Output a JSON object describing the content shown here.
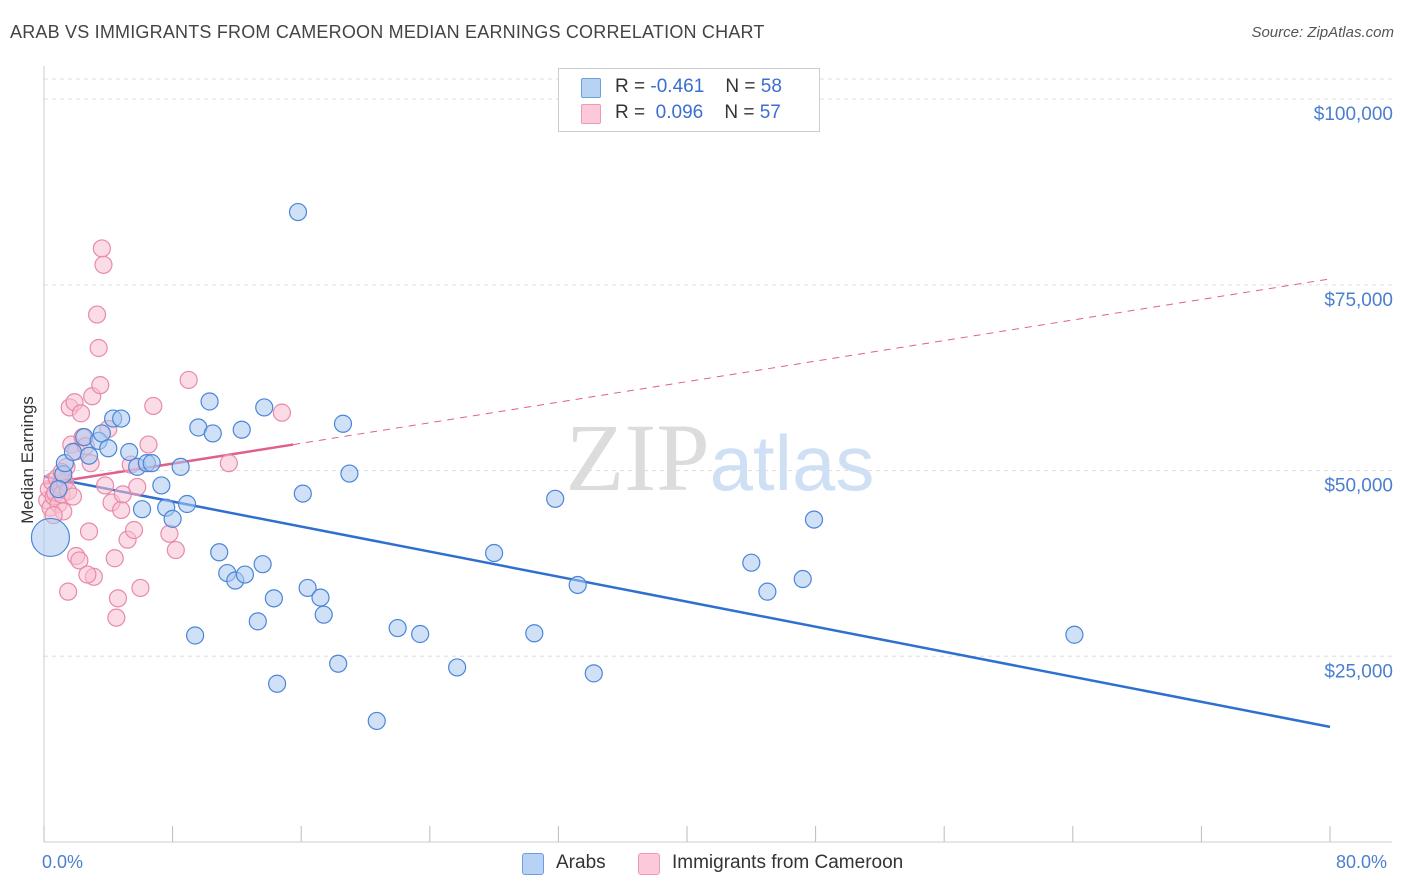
{
  "title": "ARAB VS IMMIGRANTS FROM CAMEROON MEDIAN EARNINGS CORRELATION CHART",
  "source": "Source: ZipAtlas.com",
  "watermark": "ZIPatlas",
  "legend": {
    "rows": [
      {
        "r_label": "R =",
        "r_value": "-0.461",
        "n_label": "N =",
        "n_value": "58"
      },
      {
        "r_label": "R =",
        "r_value": "0.096",
        "n_label": "N =",
        "n_value": "57"
      }
    ]
  },
  "bottom_legend": {
    "arabs": "Arabs",
    "cameroon": "Immigrants from Cameroon"
  },
  "colors": {
    "arabs_fill": "#a9c8f0",
    "arabs_stroke": "#4a86d8",
    "arabs_line": "#2f6fd0",
    "cameroon_fill": "#f8bfd2",
    "cameroon_stroke": "#e88aa8",
    "cameroon_line": "#e0608a",
    "grid": "#dddddd",
    "axis_text": "#4a7fd0"
  },
  "chart_data": {
    "type": "scatter",
    "title": "ARAB VS IMMIGRANTS FROM CAMEROON MEDIAN EARNINGS CORRELATION CHART",
    "xlabel": "",
    "ylabel": "Median Earnings",
    "xlim": [
      0,
      80
    ],
    "ylim": [
      0,
      105000
    ],
    "x_tick_labels": [
      "0.0%",
      "80.0%"
    ],
    "y_ticks": [
      25000,
      50000,
      75000,
      100000
    ],
    "y_tick_labels": [
      "$25,000",
      "$50,000",
      "$75,000",
      "$100,000"
    ],
    "grid": true,
    "legend_position": "top-center",
    "series": [
      {
        "name": "Arabs",
        "r": -0.461,
        "n": 58,
        "trend": {
          "x": [
            0,
            80
          ],
          "y": [
            49200,
            15500
          ],
          "style": "solid"
        },
        "points": [
          {
            "x": 0.4,
            "y": 41000,
            "big": true
          },
          {
            "x": 1.2,
            "y": 49500
          },
          {
            "x": 1.3,
            "y": 51000
          },
          {
            "x": 1.8,
            "y": 52500
          },
          {
            "x": 2.5,
            "y": 54500
          },
          {
            "x": 2.8,
            "y": 52000
          },
          {
            "x": 3.4,
            "y": 54000
          },
          {
            "x": 3.6,
            "y": 55000
          },
          {
            "x": 4.0,
            "y": 53000
          },
          {
            "x": 4.3,
            "y": 57000
          },
          {
            "x": 4.8,
            "y": 57000
          },
          {
            "x": 5.3,
            "y": 52500
          },
          {
            "x": 5.8,
            "y": 50500
          },
          {
            "x": 6.1,
            "y": 44800
          },
          {
            "x": 6.4,
            "y": 51000
          },
          {
            "x": 6.7,
            "y": 51000
          },
          {
            "x": 7.3,
            "y": 48000
          },
          {
            "x": 7.6,
            "y": 45000
          },
          {
            "x": 8.0,
            "y": 43500
          },
          {
            "x": 8.5,
            "y": 50500
          },
          {
            "x": 8.9,
            "y": 45500
          },
          {
            "x": 9.4,
            "y": 27800
          },
          {
            "x": 9.6,
            "y": 55800
          },
          {
            "x": 10.3,
            "y": 59300
          },
          {
            "x": 10.5,
            "y": 55000
          },
          {
            "x": 10.9,
            "y": 39000
          },
          {
            "x": 11.4,
            "y": 36200
          },
          {
            "x": 11.9,
            "y": 35200
          },
          {
            "x": 12.3,
            "y": 55500
          },
          {
            "x": 12.5,
            "y": 36000
          },
          {
            "x": 13.3,
            "y": 29700
          },
          {
            "x": 13.6,
            "y": 37400
          },
          {
            "x": 13.7,
            "y": 58500
          },
          {
            "x": 14.3,
            "y": 32800
          },
          {
            "x": 14.5,
            "y": 21300
          },
          {
            "x": 15.8,
            "y": 84800
          },
          {
            "x": 16.1,
            "y": 46900
          },
          {
            "x": 16.4,
            "y": 34200
          },
          {
            "x": 17.2,
            "y": 32900
          },
          {
            "x": 17.4,
            "y": 30600
          },
          {
            "x": 18.3,
            "y": 24000
          },
          {
            "x": 18.6,
            "y": 56300
          },
          {
            "x": 19.0,
            "y": 49600
          },
          {
            "x": 20.7,
            "y": 16300
          },
          {
            "x": 22.0,
            "y": 28800
          },
          {
            "x": 23.4,
            "y": 28000
          },
          {
            "x": 25.7,
            "y": 23500
          },
          {
            "x": 28.0,
            "y": 38900
          },
          {
            "x": 30.5,
            "y": 28100
          },
          {
            "x": 31.8,
            "y": 46200
          },
          {
            "x": 33.2,
            "y": 34600
          },
          {
            "x": 34.2,
            "y": 22700
          },
          {
            "x": 44.0,
            "y": 37600
          },
          {
            "x": 45.0,
            "y": 33700
          },
          {
            "x": 47.2,
            "y": 35400
          },
          {
            "x": 47.9,
            "y": 43400
          },
          {
            "x": 64.1,
            "y": 27900
          },
          {
            "x": 0.9,
            "y": 47500
          }
        ]
      },
      {
        "name": "Immigrants from Cameroon",
        "r": 0.096,
        "n": 57,
        "trend": {
          "x": [
            0,
            15.5
          ],
          "y": [
            48200,
            53500
          ],
          "style": "solid",
          "extension": {
            "x": [
              15.5,
              80
            ],
            "y": [
              53500,
              75800
            ],
            "style": "dashed"
          }
        },
        "points": [
          {
            "x": 0.2,
            "y": 46000
          },
          {
            "x": 0.3,
            "y": 47500
          },
          {
            "x": 0.4,
            "y": 45000
          },
          {
            "x": 0.5,
            "y": 48500
          },
          {
            "x": 0.6,
            "y": 46500
          },
          {
            "x": 0.7,
            "y": 47000
          },
          {
            "x": 0.8,
            "y": 49000
          },
          {
            "x": 0.9,
            "y": 45500
          },
          {
            "x": 1.0,
            "y": 48000
          },
          {
            "x": 1.1,
            "y": 46800
          },
          {
            "x": 1.2,
            "y": 44500
          },
          {
            "x": 1.3,
            "y": 48500
          },
          {
            "x": 1.4,
            "y": 50500
          },
          {
            "x": 1.5,
            "y": 47200
          },
          {
            "x": 1.6,
            "y": 58500
          },
          {
            "x": 1.5,
            "y": 33700
          },
          {
            "x": 1.7,
            "y": 53500
          },
          {
            "x": 1.8,
            "y": 46500
          },
          {
            "x": 1.9,
            "y": 59200
          },
          {
            "x": 2.0,
            "y": 52600
          },
          {
            "x": 2.0,
            "y": 38500
          },
          {
            "x": 2.2,
            "y": 37900
          },
          {
            "x": 2.3,
            "y": 57700
          },
          {
            "x": 2.4,
            "y": 54500
          },
          {
            "x": 2.6,
            "y": 53300
          },
          {
            "x": 2.8,
            "y": 41800
          },
          {
            "x": 2.9,
            "y": 51000
          },
          {
            "x": 3.0,
            "y": 60000
          },
          {
            "x": 3.1,
            "y": 35700
          },
          {
            "x": 3.3,
            "y": 71000
          },
          {
            "x": 3.4,
            "y": 66500
          },
          {
            "x": 3.5,
            "y": 61500
          },
          {
            "x": 3.6,
            "y": 79900
          },
          {
            "x": 3.7,
            "y": 77700
          },
          {
            "x": 3.8,
            "y": 48000
          },
          {
            "x": 4.0,
            "y": 55600
          },
          {
            "x": 4.2,
            "y": 45700
          },
          {
            "x": 4.4,
            "y": 38200
          },
          {
            "x": 4.5,
            "y": 30200
          },
          {
            "x": 4.6,
            "y": 32800
          },
          {
            "x": 4.8,
            "y": 44700
          },
          {
            "x": 4.9,
            "y": 46800
          },
          {
            "x": 5.2,
            "y": 40700
          },
          {
            "x": 5.4,
            "y": 50800
          },
          {
            "x": 5.6,
            "y": 42000
          },
          {
            "x": 5.8,
            "y": 47800
          },
          {
            "x": 6.0,
            "y": 34200
          },
          {
            "x": 6.5,
            "y": 53500
          },
          {
            "x": 6.8,
            "y": 58700
          },
          {
            "x": 7.8,
            "y": 41500
          },
          {
            "x": 8.2,
            "y": 39300
          },
          {
            "x": 9.0,
            "y": 62200
          },
          {
            "x": 11.5,
            "y": 51000
          },
          {
            "x": 14.8,
            "y": 57800
          },
          {
            "x": 0.6,
            "y": 44000
          },
          {
            "x": 1.1,
            "y": 49800
          },
          {
            "x": 2.7,
            "y": 36000
          }
        ]
      }
    ]
  }
}
